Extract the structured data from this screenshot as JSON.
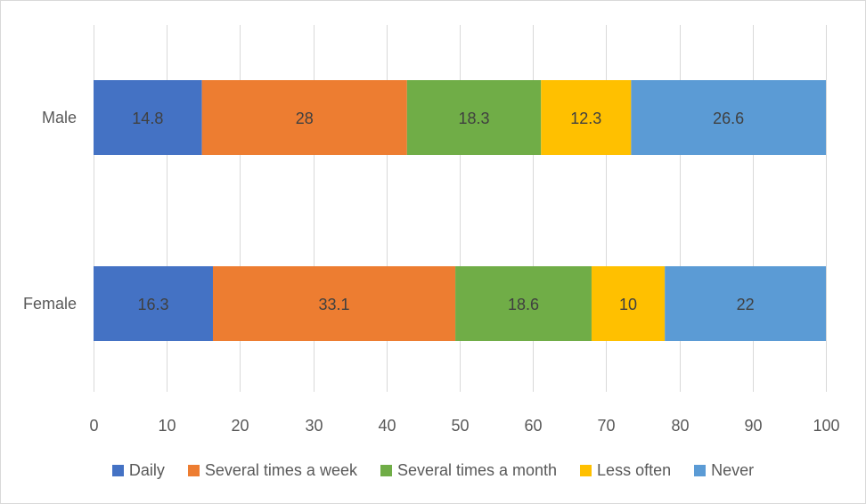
{
  "chart_data": {
    "type": "bar",
    "orientation": "horizontal",
    "stacked": true,
    "title": "",
    "xlabel": "",
    "ylabel": "",
    "categories": [
      "Male",
      "Female"
    ],
    "xlim": [
      0,
      100
    ],
    "xticks": [
      0,
      10,
      20,
      30,
      40,
      50,
      60,
      70,
      80,
      90,
      100
    ],
    "grid": "vertical",
    "legend_position": "bottom",
    "series": [
      {
        "name": "Daily",
        "color": "#4472c4",
        "values": [
          14.8,
          16.3
        ]
      },
      {
        "name": "Several times a week",
        "color": "#ed7d31",
        "values": [
          28,
          33.1
        ]
      },
      {
        "name": "Several times a month",
        "color": "#70ad47",
        "values": [
          18.3,
          18.6
        ]
      },
      {
        "name": "Less often",
        "color": "#ffc000",
        "values": [
          12.3,
          10
        ]
      },
      {
        "name": "Never",
        "color": "#5b9bd5",
        "values": [
          26.6,
          22
        ]
      }
    ]
  }
}
